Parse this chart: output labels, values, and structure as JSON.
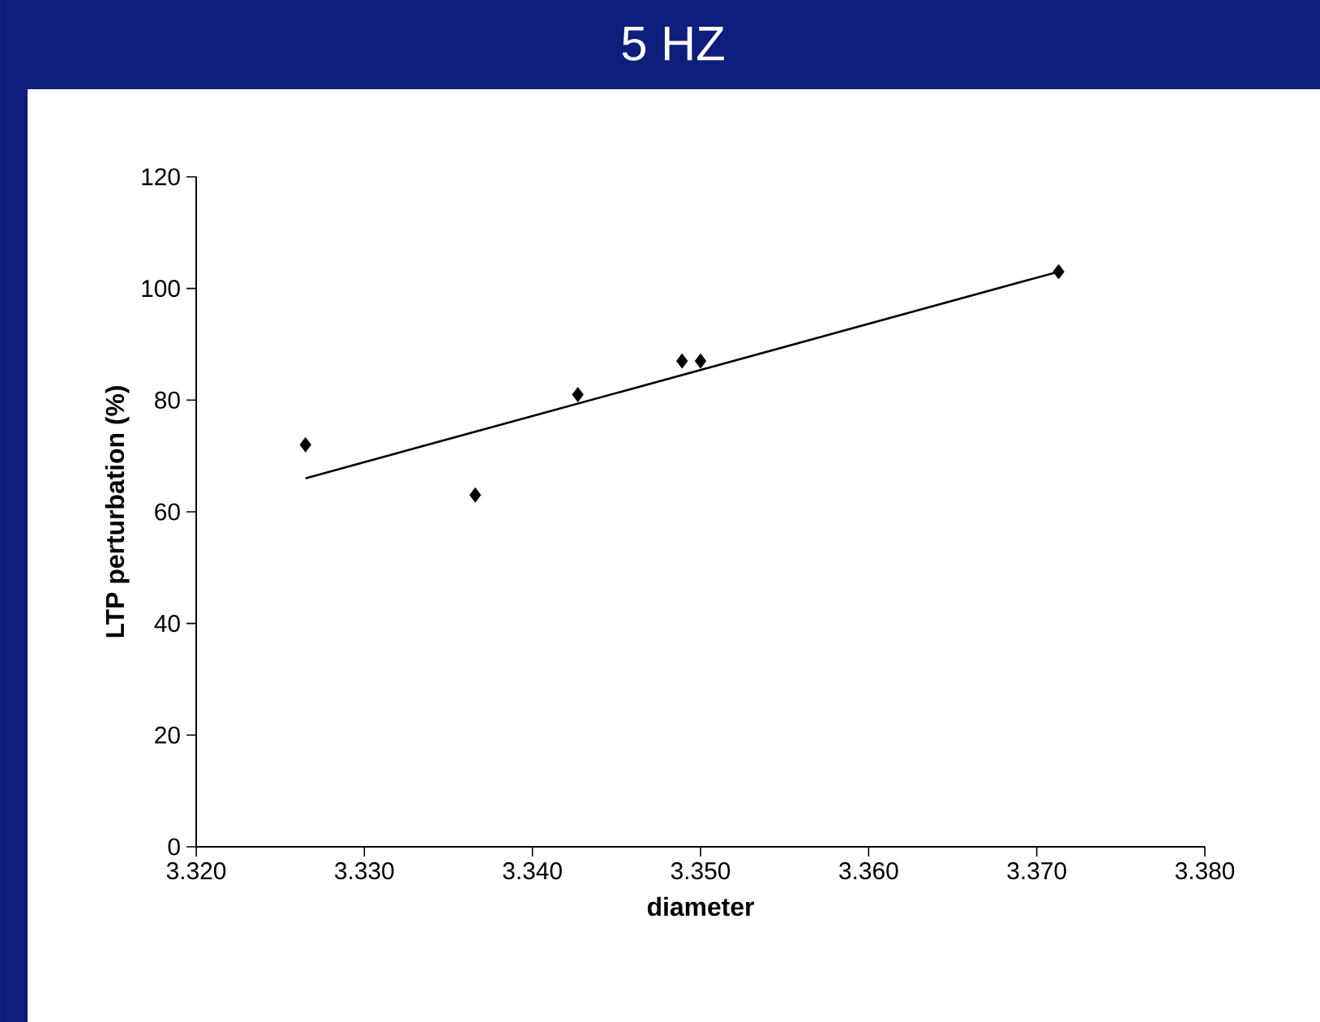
{
  "chart_data": {
    "type": "scatter",
    "title": "5 HZ",
    "xlabel": "diameter",
    "ylabel": "LTP perturbation (%)",
    "xlim": [
      3.32,
      3.38
    ],
    "xticks": [
      {
        "value": 3.32,
        "label": "3.320"
      },
      {
        "value": 3.33,
        "label": "3.330"
      },
      {
        "value": 3.34,
        "label": "3.340"
      },
      {
        "value": 3.35,
        "label": "3.350"
      },
      {
        "value": 3.36,
        "label": "3.360"
      },
      {
        "value": 3.37,
        "label": "3.370"
      },
      {
        "value": 3.38,
        "label": "3.380"
      }
    ],
    "ylim": [
      0,
      120
    ],
    "yticks": [
      0,
      20,
      40,
      60,
      80,
      100,
      120
    ],
    "marker": "diamond",
    "series": [
      {
        "color": "#000000",
        "x": [
          3.3265,
          3.3366,
          3.3427,
          3.3489,
          3.35,
          3.3713
        ],
        "values": [
          72,
          63,
          81,
          87,
          87,
          103
        ]
      },
      {
        "type": "line",
        "color": "#000000",
        "marker": "none",
        "line_style": "solid",
        "x": [
          3.3265,
          3.3713
        ],
        "values": [
          66,
          103
        ]
      }
    ]
  }
}
